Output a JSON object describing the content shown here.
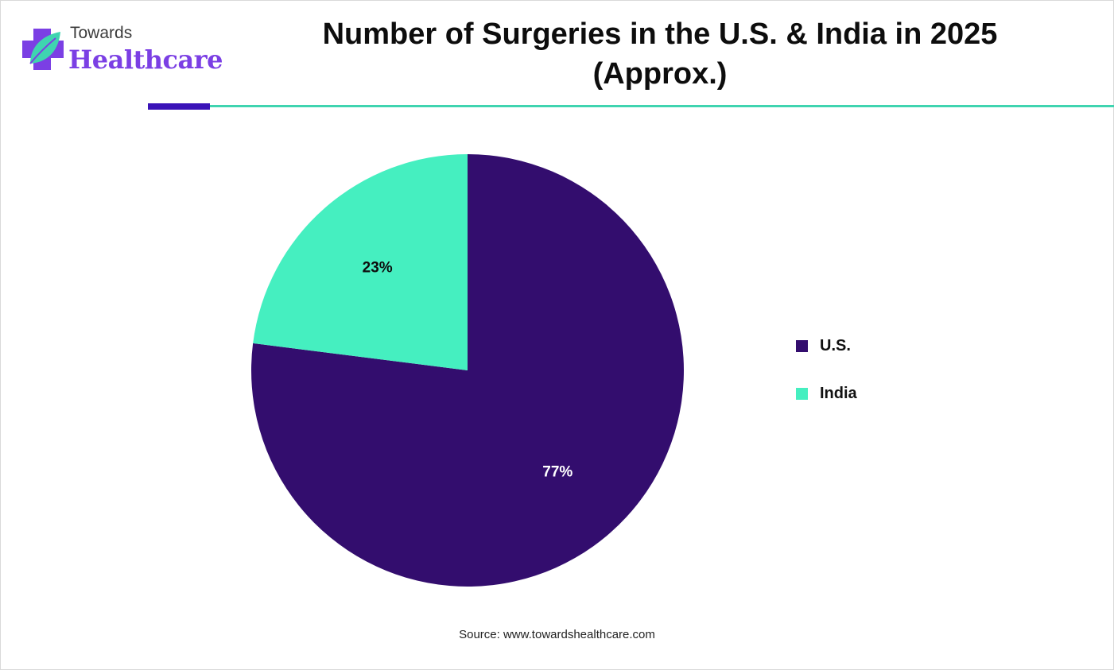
{
  "brand": {
    "line1": "Towards",
    "line2": "Healthcare",
    "colors": {
      "purple": "#7b3fe4",
      "teal": "#3fd4b0"
    }
  },
  "source": "Source: www.towardshealthcare.com",
  "chart_data": {
    "type": "pie",
    "title": "Number of Surgeries in the U.S. & India in 2025 (Approx.)",
    "categories": [
      "U.S.",
      "India"
    ],
    "values": [
      77,
      23
    ],
    "labels": [
      "77%",
      "23%"
    ],
    "colors": [
      "#330d6e",
      "#45efc0"
    ],
    "label_colors": [
      "#ffffff",
      "#0d0d0d"
    ],
    "legend": "right"
  }
}
